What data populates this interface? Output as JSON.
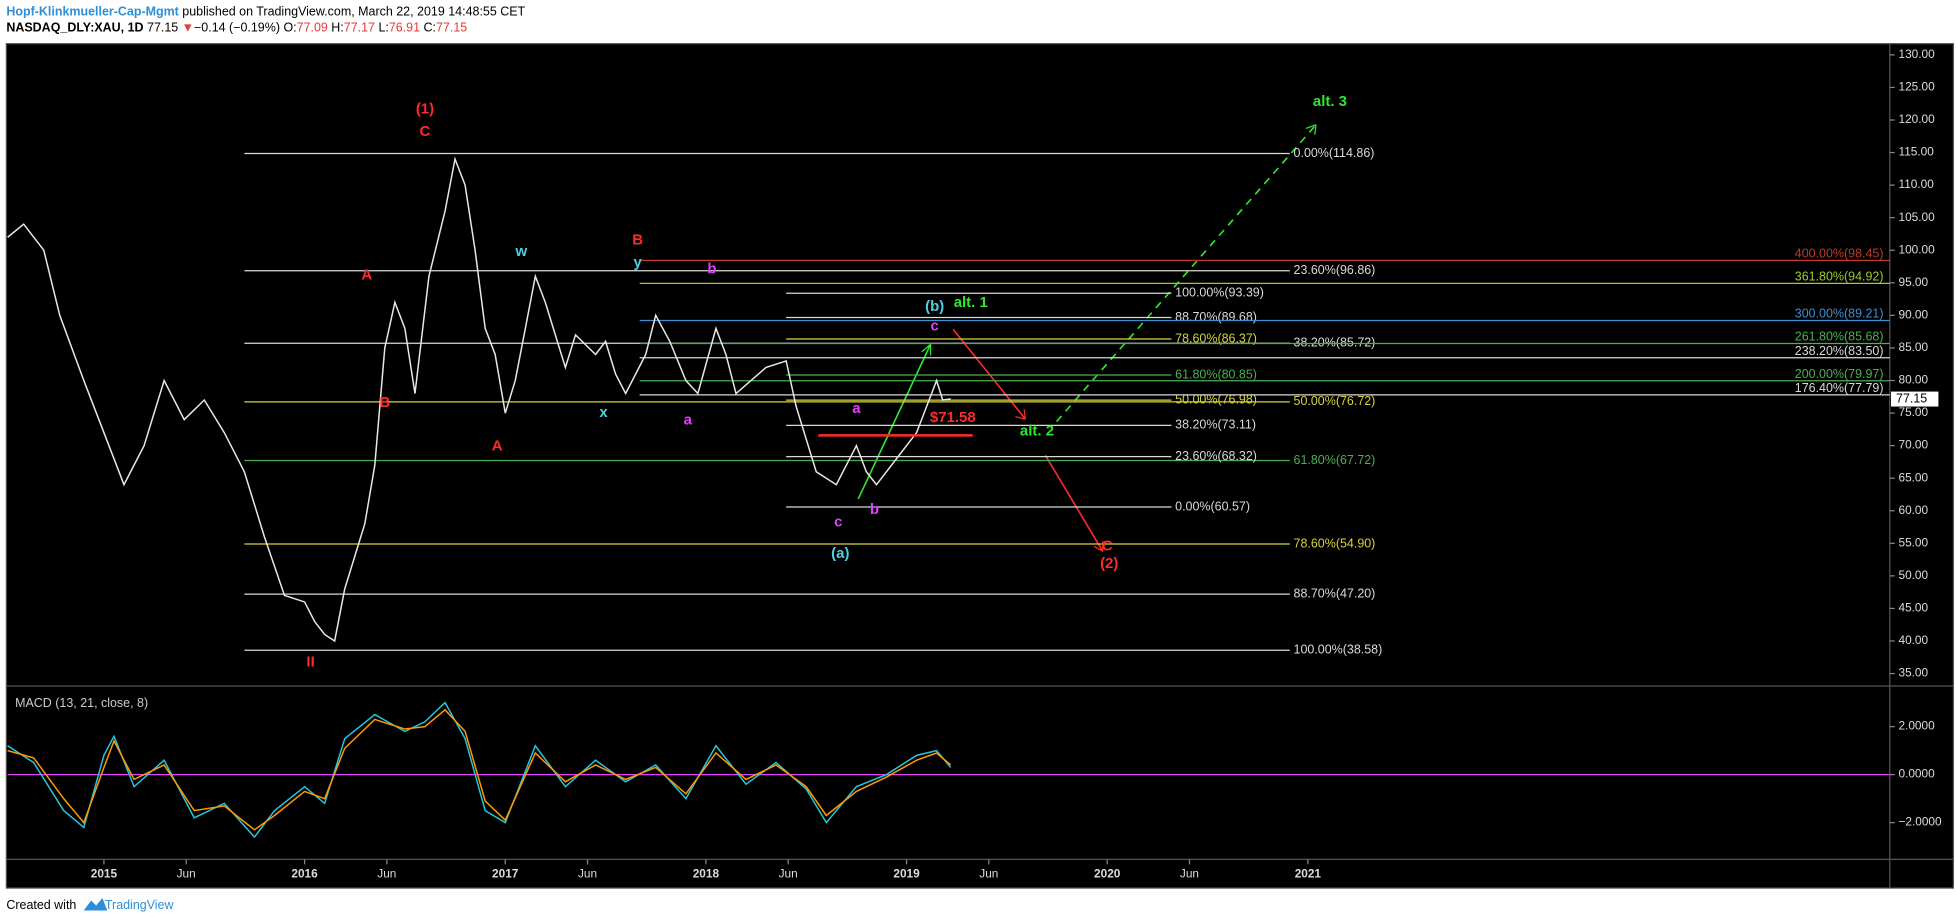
{
  "header": {
    "author": "Hopf-Klinkmueller-Cap-Mgmt",
    "published": "published on TradingView.com, March 22, 2019 14:48:55 CET",
    "symbol": "NASDAQ_DLY:XAU, 1D",
    "last": "77.15",
    "arrow": "▼",
    "change": "−0.14 (−0.19%)",
    "o_label": "O:",
    "open": "77.09",
    "h_label": "H:",
    "high": "77.17",
    "l_label": "L:",
    "low": "76.91",
    "c_label": "C:",
    "close": "77.15"
  },
  "footer": {
    "created": "Created with",
    "brand": "TradingView"
  },
  "chart_data": {
    "type": "line",
    "x": [
      2014.52,
      2014.6,
      2014.7,
      2014.78,
      2014.9,
      2015.0,
      2015.1,
      2015.2,
      2015.3,
      2015.4,
      2015.5,
      2015.6,
      2015.7,
      2015.8,
      2015.9,
      2016.0,
      2016.05,
      2016.1,
      2016.15,
      2016.2,
      2016.3,
      2016.35,
      2016.4,
      2016.45,
      2016.5,
      2016.55,
      2016.62,
      2016.7,
      2016.75,
      2016.8,
      2016.85,
      2016.9,
      2016.95,
      2017.0,
      2017.05,
      2017.1,
      2017.15,
      2017.2,
      2017.3,
      2017.35,
      2017.45,
      2017.5,
      2017.55,
      2017.6,
      2017.7,
      2017.75,
      2017.82,
      2017.9,
      2017.96,
      2018.05,
      2018.1,
      2018.15,
      2018.3,
      2018.4,
      2018.45,
      2018.55,
      2018.65,
      2018.75,
      2018.8,
      2018.85,
      2018.95,
      2019.05,
      2019.1,
      2019.15,
      2019.18,
      2019.22
    ],
    "series": [
      {
        "name": "XAU",
        "color": "#e8e8e8",
        "values": [
          102,
          104,
          100,
          90,
          80,
          72,
          64,
          70,
          80,
          74,
          77,
          72,
          66,
          56,
          47,
          46,
          43,
          41,
          40,
          48,
          58,
          67,
          85,
          92,
          88,
          78,
          96,
          106,
          114,
          110,
          100,
          88,
          84,
          75,
          80,
          88,
          96,
          92,
          82,
          87,
          84,
          86,
          81,
          78,
          84,
          90,
          86,
          80,
          78,
          88,
          84,
          78,
          82,
          83,
          76,
          66,
          64,
          70,
          66,
          64,
          68,
          72,
          76,
          80,
          77,
          77.15
        ]
      }
    ],
    "xlim": [
      2014.52,
      2023.9
    ],
    "ylim": [
      33.28,
      131.53
    ],
    "xticks": [
      2015,
      {
        "value": 2015.41,
        "label": "Jun"
      },
      2016,
      {
        "value": 2016.41,
        "label": "Jun"
      },
      2017,
      {
        "value": 2017.41,
        "label": "Jun"
      },
      2018,
      {
        "value": 2018.41,
        "label": "Jun"
      },
      2019,
      {
        "value": 2019.41,
        "label": "Jun"
      },
      2020,
      {
        "value": 2020.41,
        "label": "Jun"
      },
      2021
    ],
    "yticks": [
      {
        "value": 35,
        "label": "35.00"
      },
      {
        "value": 40,
        "label": "40.00"
      },
      {
        "value": 45,
        "label": "45.00"
      },
      {
        "value": 50,
        "label": "50.00"
      },
      {
        "value": 55,
        "label": "55.00"
      },
      {
        "value": 60,
        "label": "60.00"
      },
      {
        "value": 65,
        "label": "65.00"
      },
      {
        "value": 70,
        "label": "70.00"
      },
      {
        "value": 75,
        "label": "75.00"
      },
      {
        "value": 80,
        "label": "80.00"
      },
      {
        "value": 85,
        "label": "85.00"
      },
      {
        "value": 90,
        "label": "90.00"
      },
      {
        "value": 95,
        "label": "95.00"
      },
      {
        "value": 100,
        "label": "100.00"
      },
      {
        "value": 105,
        "label": "105.00"
      },
      {
        "value": 110,
        "label": "110.00"
      },
      {
        "value": 115,
        "label": "115.00"
      },
      {
        "value": 120,
        "label": "120.00"
      },
      {
        "value": 125,
        "label": "125.00"
      },
      {
        "value": 130,
        "label": "130.00"
      }
    ],
    "last_price": {
      "value": 77.15,
      "label": "77.15"
    },
    "fib_sets": [
      {
        "from": 2015.7,
        "to": 2020.91,
        "levels": [
          {
            "label": "0.00%(114.86)",
            "value": 114.86,
            "color": "#d9d9d9"
          },
          {
            "label": "23.60%(96.86)",
            "value": 96.86,
            "color": "#d9d9d9"
          },
          {
            "label": "38.20%(85.72)",
            "value": 85.72,
            "color": "#d9d9d9"
          },
          {
            "label": "50.00%(76.72)",
            "value": 76.72,
            "color": "#d6d23a"
          },
          {
            "label": "61.80%(67.72)",
            "value": 67.72,
            "color": "#4caf50"
          },
          {
            "label": "78.60%(54.90)",
            "value": 54.9,
            "color": "#d6d23a"
          },
          {
            "label": "88.70%(47.20)",
            "value": 47.2,
            "color": "#d9d9d9"
          },
          {
            "label": "100.00%(38.58)",
            "value": 38.58,
            "color": "#d9d9d9"
          }
        ]
      },
      {
        "from": 2018.4,
        "to": 2020.32,
        "levels": [
          {
            "label": "100.00%(93.39)",
            "value": 93.39,
            "color": "#d9d9d9"
          },
          {
            "label": "88.70%(89.68)",
            "value": 89.68,
            "color": "#d9d9d9"
          },
          {
            "label": "78.60%(86.37)",
            "value": 86.37,
            "color": "#d6d23a"
          },
          {
            "label": "61.80%(80.85)",
            "value": 80.85,
            "color": "#4caf50"
          },
          {
            "label": "50.00%(76.98)",
            "value": 76.98,
            "color": "#d6d23a"
          },
          {
            "label": "38.20%(73.11)",
            "value": 73.11,
            "color": "#d9d9d9"
          },
          {
            "label": "23.60%(68.32)",
            "value": 68.32,
            "color": "#d9d9d9"
          },
          {
            "label": "0.00%(60.57)",
            "value": 60.57,
            "color": "#d9d9d9"
          }
        ]
      },
      {
        "from": 2017.67,
        "to": 2023.9,
        "levels": [
          {
            "label": "400.00%(98.45)",
            "value": 98.45,
            "color": "#c0392b"
          },
          {
            "label": "361.80%(94.92)",
            "value": 94.92,
            "color": "#9acd32"
          },
          {
            "label": "300.00%(89.21)",
            "value": 89.21,
            "color": "#3d8fd1"
          },
          {
            "label": "261.80%(85.68)",
            "value": 85.68,
            "color": "#4caf50"
          },
          {
            "label": "238.20%(83.50)",
            "value": 83.5,
            "color": "#d9d9d9"
          },
          {
            "label": "200.00%(79.97)",
            "value": 79.97,
            "color": "#4caf50"
          },
          {
            "label": "176.40%(77.79)",
            "value": 77.79,
            "color": "#d9d9d9"
          }
        ]
      }
    ],
    "support": {
      "label": "$71.58",
      "value": 71.58,
      "from": 2018.56,
      "to": 2019.33,
      "color": "#ff2a2a"
    },
    "annotations": [
      {
        "text": "(1)",
        "x": 2016.6,
        "y": 121.57,
        "color": "#ff2a2a"
      },
      {
        "text": "C",
        "x": 2016.6,
        "y": 118.13,
        "color": "#ff2a2a"
      },
      {
        "text": "A",
        "x": 2016.31,
        "y": 96.1,
        "color": "#ff2a2a"
      },
      {
        "text": "B",
        "x": 2016.4,
        "y": 76.56,
        "color": "#ff2a2a"
      },
      {
        "text": "A",
        "x": 2016.96,
        "y": 69.86,
        "color": "#ff2a2a"
      },
      {
        "text": "II",
        "x": 2016.03,
        "y": 36.72,
        "color": "#ff2a2a"
      },
      {
        "text": "w",
        "x": 2017.08,
        "y": 99.74,
        "color": "#4dd0e1"
      },
      {
        "text": "x",
        "x": 2017.49,
        "y": 75.03,
        "color": "#4dd0e1"
      },
      {
        "text": "B",
        "x": 2017.66,
        "y": 101.46,
        "color": "#ff2a2a"
      },
      {
        "text": "y",
        "x": 2017.66,
        "y": 98.01,
        "color": "#4dd0e1"
      },
      {
        "text": "b",
        "x": 2018.03,
        "y": 97.06,
        "color": "#e040fb"
      },
      {
        "text": "a",
        "x": 2017.91,
        "y": 73.88,
        "color": "#e040fb"
      },
      {
        "text": "a",
        "x": 2018.75,
        "y": 75.6,
        "color": "#e040fb"
      },
      {
        "text": "c",
        "x": 2018.66,
        "y": 58.17,
        "color": "#e040fb"
      },
      {
        "text": "b",
        "x": 2018.84,
        "y": 60.09,
        "color": "#e040fb"
      },
      {
        "text": "(a)",
        "x": 2018.67,
        "y": 53.39,
        "color": "#4dd0e1"
      },
      {
        "text": "(b)",
        "x": 2019.14,
        "y": 91.31,
        "color": "#4dd0e1"
      },
      {
        "text": "alt. 1",
        "x": 2019.32,
        "y": 91.88,
        "color": "#2ee82e"
      },
      {
        "text": "c",
        "x": 2019.14,
        "y": 88.25,
        "color": "#e040fb"
      },
      {
        "text": "alt. 2",
        "x": 2019.65,
        "y": 72.16,
        "color": "#2ee82e"
      },
      {
        "text": "C",
        "x": 2020.0,
        "y": 54.54,
        "color": "#ff2a2a"
      },
      {
        "text": "(2)",
        "x": 2020.01,
        "y": 51.85,
        "color": "#ff2a2a"
      },
      {
        "text": "alt. 3",
        "x": 2021.11,
        "y": 122.72,
        "color": "#2ee82e"
      }
    ]
  },
  "macd": {
    "title": "MACD (13, 21, close, 8)",
    "x": [
      2014.52,
      2014.65,
      2014.8,
      2014.9,
      2015.0,
      2015.05,
      2015.15,
      2015.3,
      2015.45,
      2015.6,
      2015.75,
      2015.85,
      2016.0,
      2016.1,
      2016.2,
      2016.35,
      2016.5,
      2016.6,
      2016.7,
      2016.8,
      2016.9,
      2017.0,
      2017.15,
      2017.3,
      2017.45,
      2017.6,
      2017.75,
      2017.9,
      2018.05,
      2018.2,
      2018.35,
      2018.5,
      2018.6,
      2018.75,
      2018.9,
      2019.05,
      2019.15,
      2019.22
    ],
    "series": [
      {
        "name": "MACD",
        "color": "#26c6da",
        "values": [
          1.2,
          0.5,
          -1.5,
          -2.2,
          0.8,
          1.6,
          -0.5,
          0.6,
          -1.8,
          -1.2,
          -2.6,
          -1.5,
          -0.5,
          -1.2,
          1.5,
          2.5,
          1.8,
          2.2,
          3.0,
          1.5,
          -1.5,
          -2.0,
          1.2,
          -0.5,
          0.6,
          -0.3,
          0.4,
          -1.0,
          1.2,
          -0.4,
          0.5,
          -0.6,
          -2.0,
          -0.5,
          0.0,
          0.8,
          1.0,
          0.3
        ]
      },
      {
        "name": "Signal",
        "color": "#ff9800",
        "values": [
          1.0,
          0.7,
          -1.0,
          -2.0,
          0.3,
          1.4,
          -0.2,
          0.4,
          -1.5,
          -1.3,
          -2.3,
          -1.7,
          -0.7,
          -1.0,
          1.1,
          2.3,
          1.9,
          2.0,
          2.7,
          1.8,
          -1.1,
          -1.9,
          0.9,
          -0.3,
          0.4,
          -0.2,
          0.3,
          -0.8,
          0.9,
          -0.2,
          0.4,
          -0.5,
          -1.7,
          -0.7,
          -0.1,
          0.6,
          0.9,
          0.4
        ]
      }
    ],
    "ylim": [
      -3.48,
      3.64
    ],
    "yticks": [
      {
        "value": 2,
        "label": "2.0000"
      },
      {
        "value": 0,
        "label": "0.0000"
      },
      {
        "value": -2,
        "label": "−2.0000"
      }
    ],
    "zero_color": "#e040fb"
  }
}
